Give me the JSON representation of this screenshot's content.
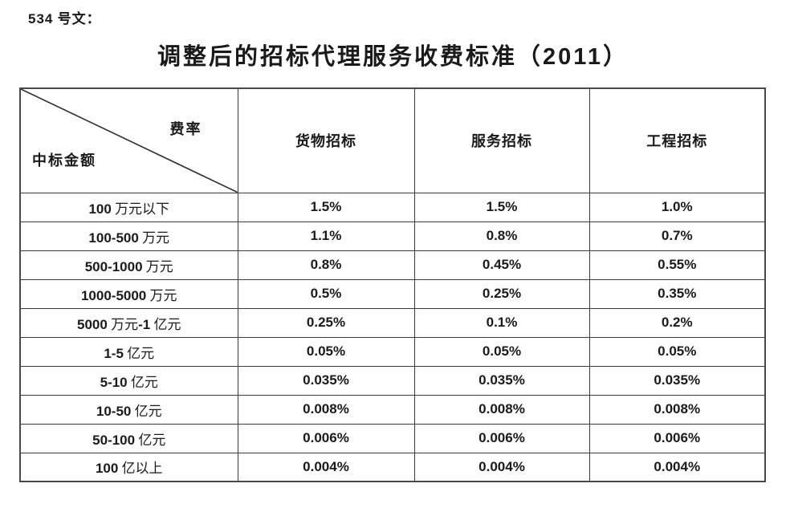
{
  "doc_label": "534 号文：",
  "title": "调整后的招标代理服务收费标准（2011）",
  "table": {
    "corner": {
      "top_right": "费率",
      "bottom_left": "中标金额"
    },
    "columns": [
      "货物招标",
      "服务招标",
      "工程招标"
    ],
    "rows": [
      {
        "label": "100 万元以下",
        "values": [
          "1.5%",
          "1.5%",
          "1.0%"
        ]
      },
      {
        "label": "100-500 万元",
        "values": [
          "1.1%",
          "0.8%",
          "0.7%"
        ]
      },
      {
        "label": "500-1000 万元",
        "values": [
          "0.8%",
          "0.45%",
          "0.55%"
        ]
      },
      {
        "label": "1000-5000 万元",
        "values": [
          "0.5%",
          "0.25%",
          "0.35%"
        ]
      },
      {
        "label": "5000 万元-1 亿元",
        "values": [
          "0.25%",
          "0.1%",
          "0.2%"
        ]
      },
      {
        "label": "1-5 亿元",
        "values": [
          "0.05%",
          "0.05%",
          "0.05%"
        ]
      },
      {
        "label": "5-10 亿元",
        "values": [
          "0.035%",
          "0.035%",
          "0.035%"
        ]
      },
      {
        "label": "10-50 亿元",
        "values": [
          "0.008%",
          "0.008%",
          "0.008%"
        ]
      },
      {
        "label": "50-100 亿元",
        "values": [
          "0.006%",
          "0.006%",
          "0.006%"
        ]
      },
      {
        "label": "100 亿以上",
        "values": [
          "0.004%",
          "0.004%",
          "0.004%"
        ]
      }
    ]
  },
  "colors": {
    "text": "#1a1a1a",
    "border": "#3b3b3b",
    "background": "#ffffff"
  }
}
